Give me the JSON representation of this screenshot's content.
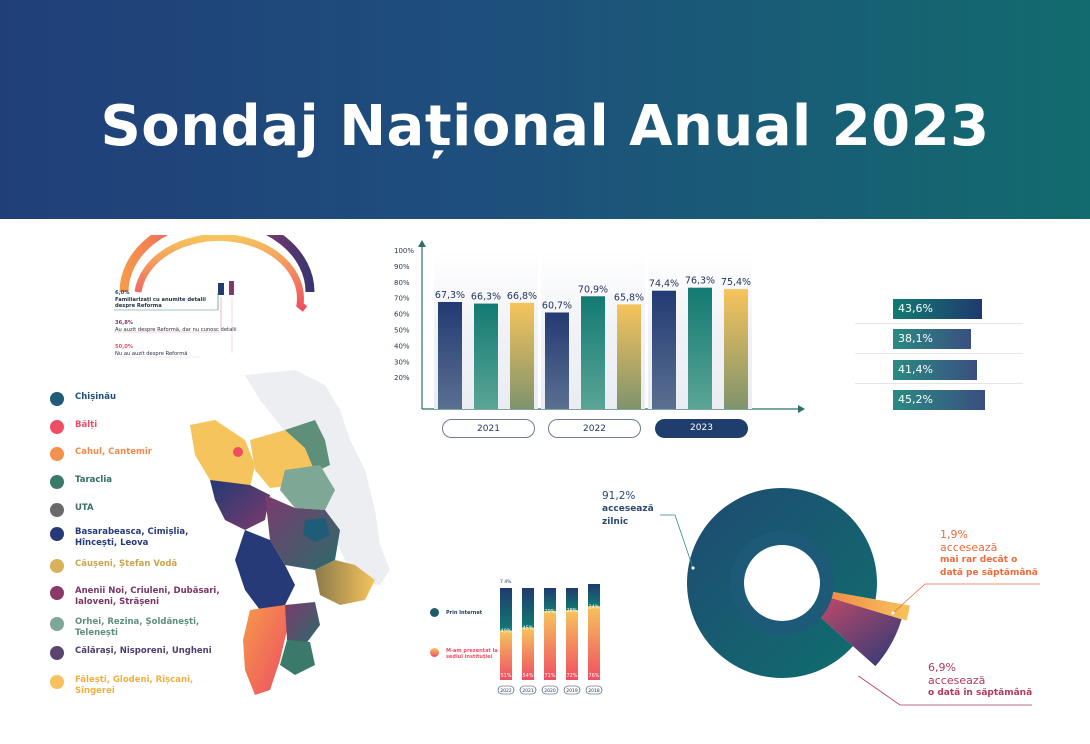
{
  "header": {
    "title": "Sondaj Național Anual 2023"
  },
  "colors": {
    "navy": "#233a73",
    "teal": "#127a72",
    "yellow": "#f6c45c",
    "red": "#ef4e62",
    "orange": "#f59a4a",
    "purple": "#7c3a6d"
  },
  "gauge": {
    "items": [
      {
        "pct": "6,0%",
        "label": "Familiarizați cu anumite detalii despre Reforma"
      },
      {
        "pct": "36,8%",
        "label": "Au auzit despre Reformă, dar nu cunosc detalii"
      },
      {
        "pct": "50,0%",
        "label": "Nu au auzit despre Reformă"
      }
    ]
  },
  "legend": {
    "items": [
      {
        "label": "Chișinău",
        "color": "#1f5c78",
        "text_color": "#1f4f78"
      },
      {
        "label": "Bălți",
        "color": "#ef4e62",
        "text_color": "#ef4e62"
      },
      {
        "label": "Cahul, Cantemir",
        "color": "#f5914e",
        "text_color": "#f28a4a"
      },
      {
        "label": "Taraclia",
        "color": "#3b7a6a",
        "text_color": "#2f6e62"
      },
      {
        "label": "UTA",
        "color": "#6b6a6a",
        "text_color": "#3c6f69"
      },
      {
        "label": "Basarabeasca, Cimișlia, Hîncești, Leova",
        "color": "#263a78",
        "text_color": "#263a78"
      },
      {
        "label": "Căușeni, Ștefan Vodă",
        "color": "#d8b158",
        "text_color": "#c9a550"
      },
      {
        "label": "Anenii Noi, Criuleni, Dubăsari, Ialoveni, Strășeni",
        "color": "#8a3a66",
        "text_color": "#7a3566"
      },
      {
        "label": "Orhei, Rezina, Șoldănești, Telenești",
        "color": "#7ea895",
        "text_color": "#5e8f7a"
      },
      {
        "label": "Călărași, Nisporeni, Ungheni",
        "color": "#5a4470",
        "text_color": "#4f3d70"
      },
      {
        "label": "Fălești, Glodeni, Rîșcani, Sîngerei",
        "color": "#f8c060",
        "text_color": "#f0b040"
      }
    ]
  },
  "chart_data": [
    {
      "type": "bar",
      "ylim": [
        0,
        100
      ],
      "yticks": [
        "20%",
        "30%",
        "40%",
        "50%",
        "60%",
        "70%",
        "80%",
        "90%",
        "100%"
      ],
      "groups": [
        {
          "year": "2021",
          "values": [
            67.3,
            66.3,
            66.8
          ],
          "labels": [
            "67,3%",
            "66,3%",
            "66,8%"
          ]
        },
        {
          "year": "2022",
          "values": [
            60.7,
            70.9,
            65.8
          ],
          "labels": [
            "60,7%",
            "70,9%",
            "65,8%"
          ]
        },
        {
          "year": "2023",
          "values": [
            74.4,
            76.3,
            75.4
          ],
          "labels": [
            "74,4%",
            "76,3%",
            "75,4%"
          ]
        }
      ]
    },
    {
      "type": "bar",
      "orientation": "horizontal",
      "values": [
        43.6,
        38.1,
        41.4,
        45.2
      ],
      "labels": [
        "43,6%",
        "38,1%",
        "41,4%",
        "45,2%"
      ]
    },
    {
      "type": "bar",
      "stacked": true,
      "categories": [
        "2022",
        "2021",
        "2020",
        "2019",
        "2018"
      ],
      "series": [
        {
          "name": "Prin Internet",
          "values": [
            null,
            45,
            29,
            28,
            24
          ],
          "labels": [
            "49%",
            "45%",
            "29%",
            "28%",
            "24%"
          ]
        },
        {
          "name": "M-am prezentat la sediul instituției",
          "values": [
            51,
            54,
            71,
            72,
            76
          ],
          "labels": [
            "51%",
            "54%",
            "71%",
            "72%",
            "76%"
          ]
        }
      ],
      "top_label": "7 4%"
    },
    {
      "type": "pie",
      "slices": [
        {
          "value": 91.2,
          "pct": "91,2%",
          "line1": "accesează",
          "line2": "zilnic"
        },
        {
          "value": 6.9,
          "pct": "6,9%",
          "line1": "accesează",
          "line2": "o dată în săptămână"
        },
        {
          "value": 1.9,
          "pct": "1,9%",
          "line1": "accesează",
          "line2": "mai rar decât o",
          "line3": "dată pe săptămână"
        }
      ]
    }
  ]
}
